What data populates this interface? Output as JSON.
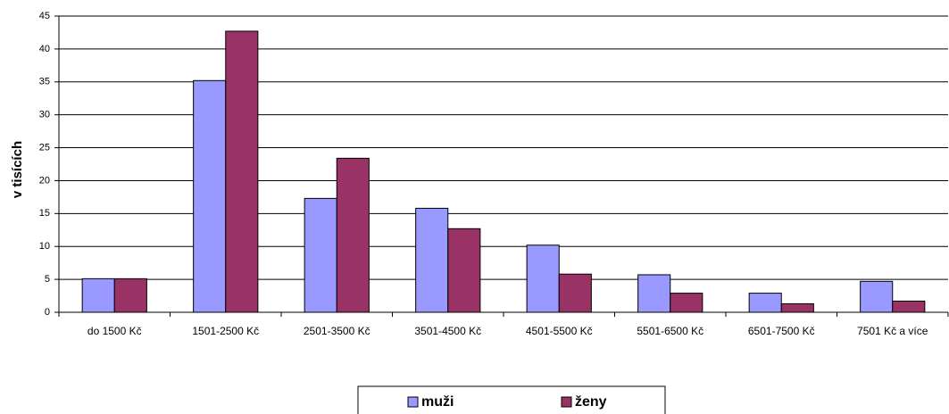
{
  "chart_data": {
    "type": "bar",
    "y_label": "v tisících",
    "categories": [
      "do 1500 Kč",
      "1501-2500 Kč",
      "2501-3500 Kč",
      "3501-4500 Kč",
      "4501-5500 Kč",
      "5501-6500 Kč",
      "6501-7500 Kč",
      "7501 Kč a více"
    ],
    "series": [
      {
        "name": "muži",
        "color": "#9999ff",
        "values": [
          5.1,
          35.2,
          17.3,
          15.8,
          10.2,
          5.7,
          2.9,
          4.7
        ]
      },
      {
        "name": "ženy",
        "color": "#993366",
        "values": [
          5.1,
          42.7,
          23.4,
          12.7,
          5.8,
          2.9,
          1.3,
          1.7
        ]
      }
    ],
    "ylim": [
      0,
      45
    ],
    "yticks": [
      0,
      5,
      10,
      15,
      20,
      25,
      30,
      35,
      40,
      45
    ],
    "grid": true,
    "legend": "bottom"
  }
}
